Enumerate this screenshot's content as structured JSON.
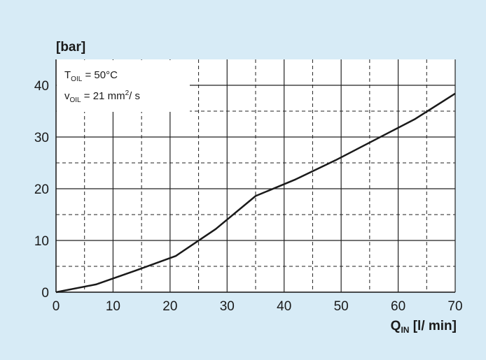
{
  "chart_data": {
    "type": "line",
    "y_unit": "[bar]",
    "x_label": {
      "symbol": "Q",
      "subscript": "IN",
      "text": " [l/ min]"
    },
    "annotations": [
      {
        "symbol": "T",
        "subscript": "OIL",
        "text": " = 50°C"
      },
      {
        "symbol": "v",
        "subscript": "OIL",
        "text": " = 21 mm",
        "superscript": "2",
        "after": "/ s"
      }
    ],
    "x": [
      0,
      7,
      14,
      21,
      28,
      35,
      42,
      49,
      56,
      63,
      70
    ],
    "series": [
      {
        "color": "#1a1a1a",
        "values": [
          0,
          1.5,
          4.2,
          7,
          12.2,
          18.6,
          21.8,
          25.5,
          29.5,
          33.5,
          38.4
        ]
      }
    ],
    "xlim": [
      0,
      70
    ],
    "ylim": [
      0,
      45
    ],
    "xticks": [
      0,
      10,
      20,
      30,
      40,
      50,
      60,
      70
    ],
    "yticks": [
      0,
      10,
      20,
      30,
      40
    ],
    "x_minor_grid": [
      5,
      15,
      25,
      35,
      45,
      55,
      65
    ],
    "y_minor_grid": [
      5,
      15,
      25,
      35
    ],
    "grid": true
  }
}
